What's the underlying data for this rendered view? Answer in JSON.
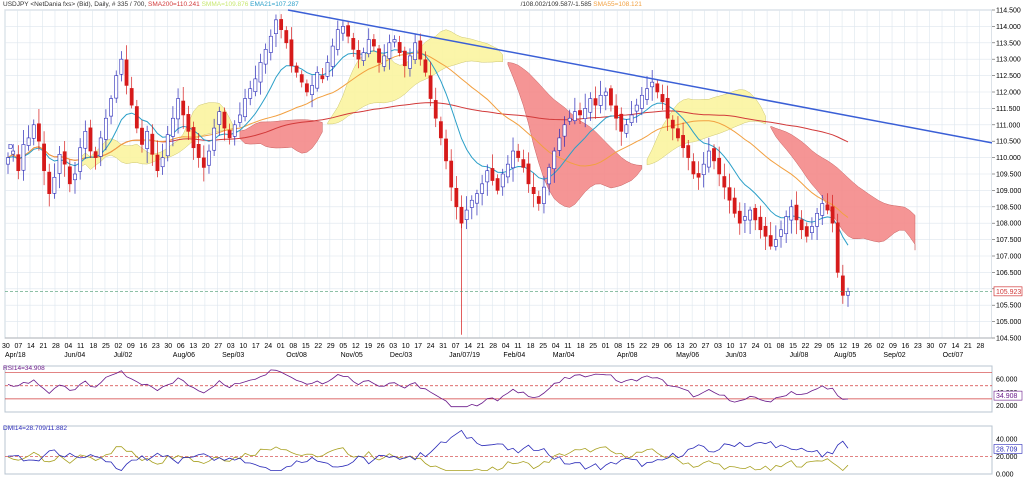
{
  "header": {
    "symbol_label": "USDJPY <NetDania fxs> (Bid), Daily, # 335 / 700,",
    "sma200": "SMA200=110.241",
    "smma": "SMMA=109.876",
    "ema21": "EMA21=107.287",
    "ichimoku": "/108.002/109.587/-1.585",
    "sma55": "SMA55=108.121"
  },
  "colors": {
    "grid": "#dde6ee",
    "up_candle": "#2a2ab8",
    "down_candle": "#d61a1a",
    "trendline": "#3a5fd6",
    "sma200": "#d23a3a",
    "ema21": "#2a9fc8",
    "sma55": "#f2a040",
    "cloud_bull": "#fbf5a0",
    "cloud_bear": "#f58a8a",
    "rsi_line": "#6a1a8a",
    "dmi_plus": "#2a2ab8",
    "dmi_minus": "#a8a020",
    "ref_line": "#d23a3a"
  },
  "chart_data": {
    "type": "candlestick",
    "price_axis": [
      "114.500",
      "114.000",
      "113.500",
      "113.000",
      "112.500",
      "112.000",
      "111.500",
      "111.000",
      "110.500",
      "110.000",
      "109.500",
      "109.000",
      "108.500",
      "108.000",
      "107.500",
      "107.000",
      "106.500",
      "106.000",
      "105.500",
      "105.000",
      "104.500"
    ],
    "ylim": [
      104.5,
      114.5
    ],
    "current_price": "105.923",
    "day_labels": [
      "30",
      "07",
      "14",
      "21",
      "28",
      "04",
      "11",
      "18",
      "25",
      "02",
      "09",
      "16",
      "23",
      "30",
      "06",
      "13",
      "20",
      "27",
      "03",
      "10",
      "17",
      "24",
      "01",
      "08",
      "15",
      "22",
      "29",
      "05",
      "12",
      "19",
      "26",
      "03",
      "10",
      "17",
      "24",
      "31",
      "07",
      "14",
      "21",
      "28",
      "04",
      "11",
      "18",
      "25",
      "04",
      "11",
      "18",
      "25",
      "01",
      "08",
      "15",
      "22",
      "29",
      "06",
      "13",
      "20",
      "27",
      "03",
      "10",
      "17",
      "24",
      "01",
      "08",
      "15",
      "22",
      "29",
      "05",
      "12",
      "19",
      "26",
      "02",
      "09",
      "16",
      "23",
      "30",
      "07",
      "14",
      "21",
      "28"
    ],
    "month_labels": [
      "Apr/18",
      "Jun/04",
      "Jul/02",
      "Aug/06",
      "Sep/03",
      "Oct/08",
      "Nov/05",
      "Dec/03",
      "Jan/07/19",
      "Feb/04",
      "Mar/04",
      "Apr/08",
      "May/06",
      "Jun/03",
      "Jul/08",
      "Aug/05",
      "Sep/02",
      "Oct/07"
    ],
    "trendline": {
      "start": 114.5,
      "end": 110.45
    },
    "close_path": [
      110.0,
      110.2,
      109.6,
      110.4,
      110.6,
      111.0,
      110.5,
      109.6,
      108.9,
      109.4,
      110.1,
      109.8,
      109.2,
      109.5,
      110.3,
      110.8,
      110.2,
      110.0,
      110.6,
      111.2,
      111.8,
      112.5,
      113.0,
      112.2,
      111.6,
      110.9,
      110.4,
      110.8,
      110.1,
      109.6,
      110.0,
      110.7,
      111.2,
      111.8,
      111.3,
      110.8,
      110.3,
      110.0,
      109.7,
      110.2,
      110.9,
      111.4,
      110.9,
      110.6,
      111.0,
      111.3,
      111.8,
      112.1,
      112.4,
      112.9,
      113.3,
      113.7,
      114.2,
      113.9,
      113.5,
      112.8,
      112.6,
      112.3,
      112.0,
      112.2,
      112.6,
      112.4,
      112.9,
      113.4,
      113.9,
      114.0,
      113.7,
      113.3,
      113.0,
      113.2,
      113.6,
      113.4,
      112.9,
      113.1,
      113.5,
      113.6,
      113.2,
      112.8,
      113.1,
      113.5,
      113.0,
      112.6,
      111.8,
      111.2,
      110.6,
      109.9,
      109.1,
      108.5,
      108.0,
      108.4,
      108.7,
      108.9,
      109.2,
      109.6,
      109.3,
      109.0,
      109.5,
      109.8,
      110.2,
      110.0,
      109.7,
      109.2,
      108.9,
      108.6,
      109.1,
      109.7,
      110.2,
      110.6,
      111.0,
      111.2,
      111.4,
      111.3,
      111.5,
      111.8,
      111.6,
      111.9,
      112.0,
      111.6,
      111.2,
      110.8,
      111.0,
      111.3,
      111.6,
      111.9,
      112.1,
      112.3,
      112.0,
      111.7,
      111.2,
      110.9,
      110.6,
      110.3,
      110.0,
      109.5,
      109.4,
      109.8,
      110.2,
      109.9,
      109.5,
      109.1,
      108.7,
      108.3,
      108.0,
      108.2,
      108.4,
      108.1,
      107.8,
      107.6,
      107.3,
      107.5,
      107.8,
      108.2,
      108.5,
      108.1,
      107.8,
      107.6,
      107.9,
      108.3,
      108.6,
      108.4,
      108.0,
      106.5,
      105.8,
      105.923
    ],
    "rsi": {
      "label": "RSI14=34.908",
      "ticks": [
        "60.000",
        "40.000",
        "20.000"
      ],
      "ylim": [
        10,
        80
      ],
      "levels": [
        70,
        50,
        30
      ],
      "current": "34.908"
    },
    "dmi": {
      "label": "DMI14=28.709/11.882",
      "ticks": [
        "40.000",
        "20.000",
        "0.000"
      ],
      "ylim": [
        0,
        55
      ],
      "level": 20,
      "current": "28.709"
    }
  }
}
